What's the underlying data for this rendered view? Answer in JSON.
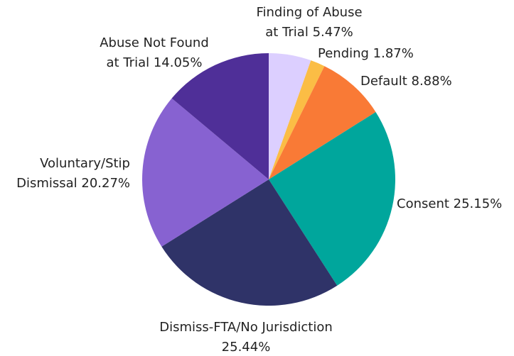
{
  "chart_data": {
    "type": "pie",
    "values": [
      5.47,
      1.87,
      8.88,
      25.15,
      25.44,
      20.27,
      14.05
    ],
    "value_labels": [
      [
        "Finding of Abuse",
        "at Trial 5.47%"
      ],
      [
        "Pending 1.87%"
      ],
      [
        "Default 8.88%"
      ],
      [
        "Consent 25.15%"
      ],
      [
        "Dismiss-FTA/No Jurisdiction",
        "25.44%"
      ],
      [
        "Voluntary/Stip",
        "Dismissal 20.27%"
      ],
      [
        "Abuse Not Found",
        "at Trial 14.05%"
      ]
    ],
    "colors": [
      "#dccfff",
      "#fbbd45",
      "#f97a36",
      "#00a69c",
      "#2f3368",
      "#8762d1",
      "#4f2f98"
    ]
  }
}
